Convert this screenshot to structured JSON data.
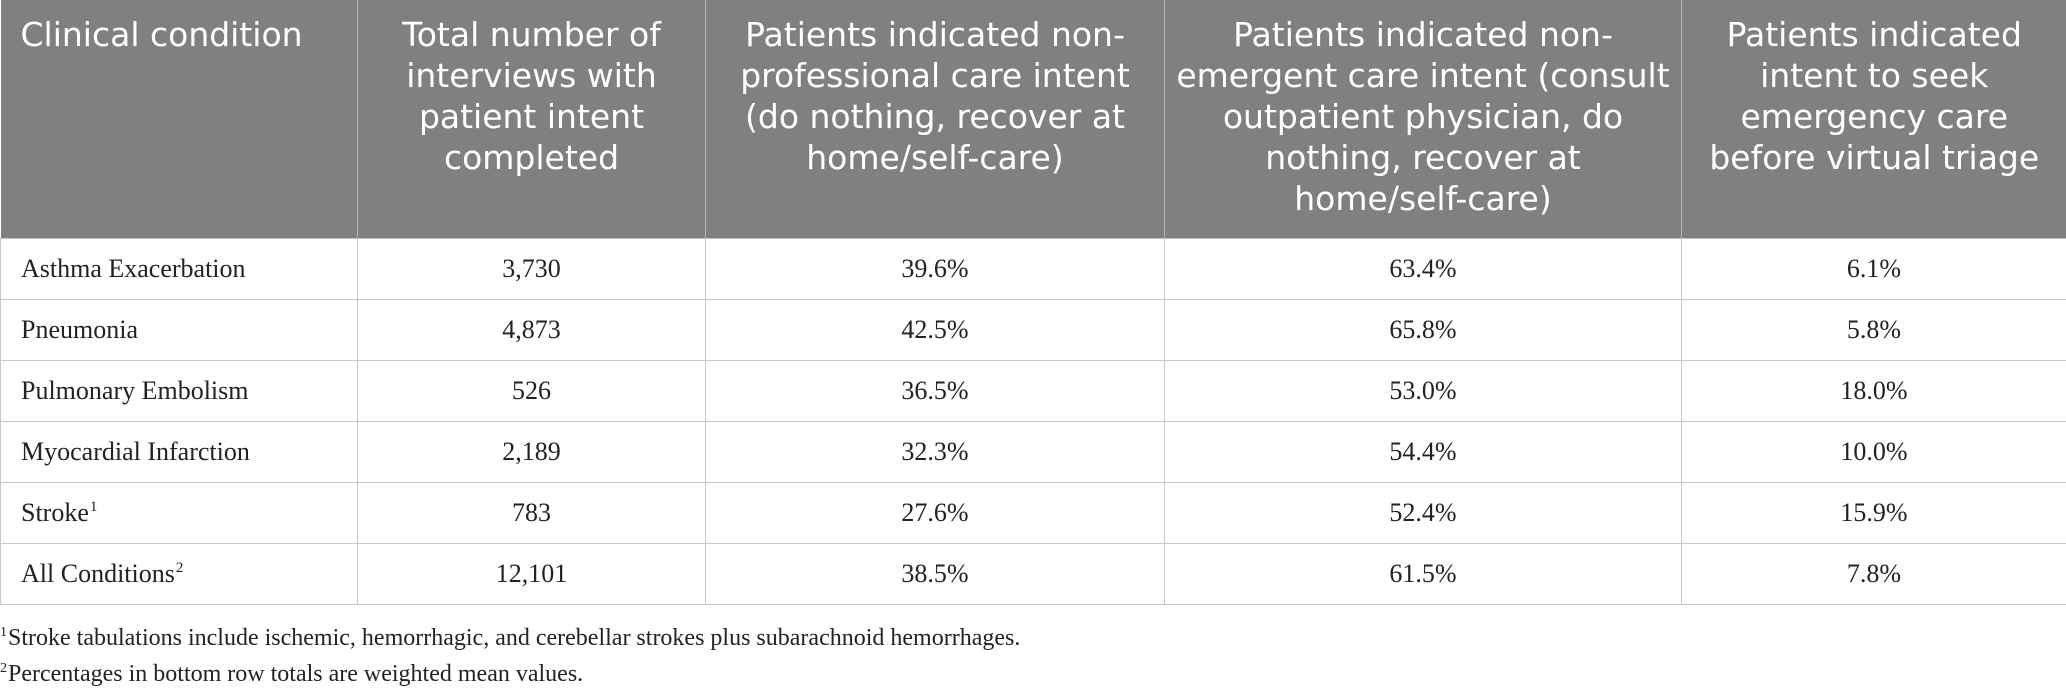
{
  "table": {
    "headers": [
      "Clinical condition",
      "Total number of interviews with patient intent completed",
      "Patients indicated non-professional care intent (do nothing, recover at home/self-care)",
      "Patients indicated non-emergent care intent (consult outpatient physician, do nothing, recover at home/self-care)",
      "Patients indicated intent to seek emergency care before virtual triage"
    ],
    "rows": [
      {
        "condition": "Asthma Exacerbation",
        "sup": "",
        "total": "3,730",
        "non_professional": "39.6%",
        "non_emergent": "63.4%",
        "emergency": "6.1%"
      },
      {
        "condition": "Pneumonia",
        "sup": "",
        "total": "4,873",
        "non_professional": "42.5%",
        "non_emergent": "65.8%",
        "emergency": "5.8%"
      },
      {
        "condition": "Pulmonary Embolism",
        "sup": "",
        "total": "526",
        "non_professional": "36.5%",
        "non_emergent": "53.0%",
        "emergency": "18.0%"
      },
      {
        "condition": "Myocardial Infarction",
        "sup": "",
        "total": "2,189",
        "non_professional": "32.3%",
        "non_emergent": "54.4%",
        "emergency": "10.0%"
      },
      {
        "condition": "Stroke",
        "sup": "1",
        "total": "783",
        "non_professional": "27.6%",
        "non_emergent": "52.4%",
        "emergency": "15.9%"
      },
      {
        "condition": "All Conditions",
        "sup": "2",
        "total": "12,101",
        "non_professional": "38.5%",
        "non_emergent": "61.5%",
        "emergency": "7.8%"
      }
    ]
  },
  "footnotes": [
    {
      "marker": "1",
      "text": "Stroke tabulations include ischemic, hemorrhagic, and cerebellar strokes plus subarachnoid hemorrhages."
    },
    {
      "marker": "2",
      "text": "Percentages in bottom row totals are weighted mean values."
    }
  ]
}
